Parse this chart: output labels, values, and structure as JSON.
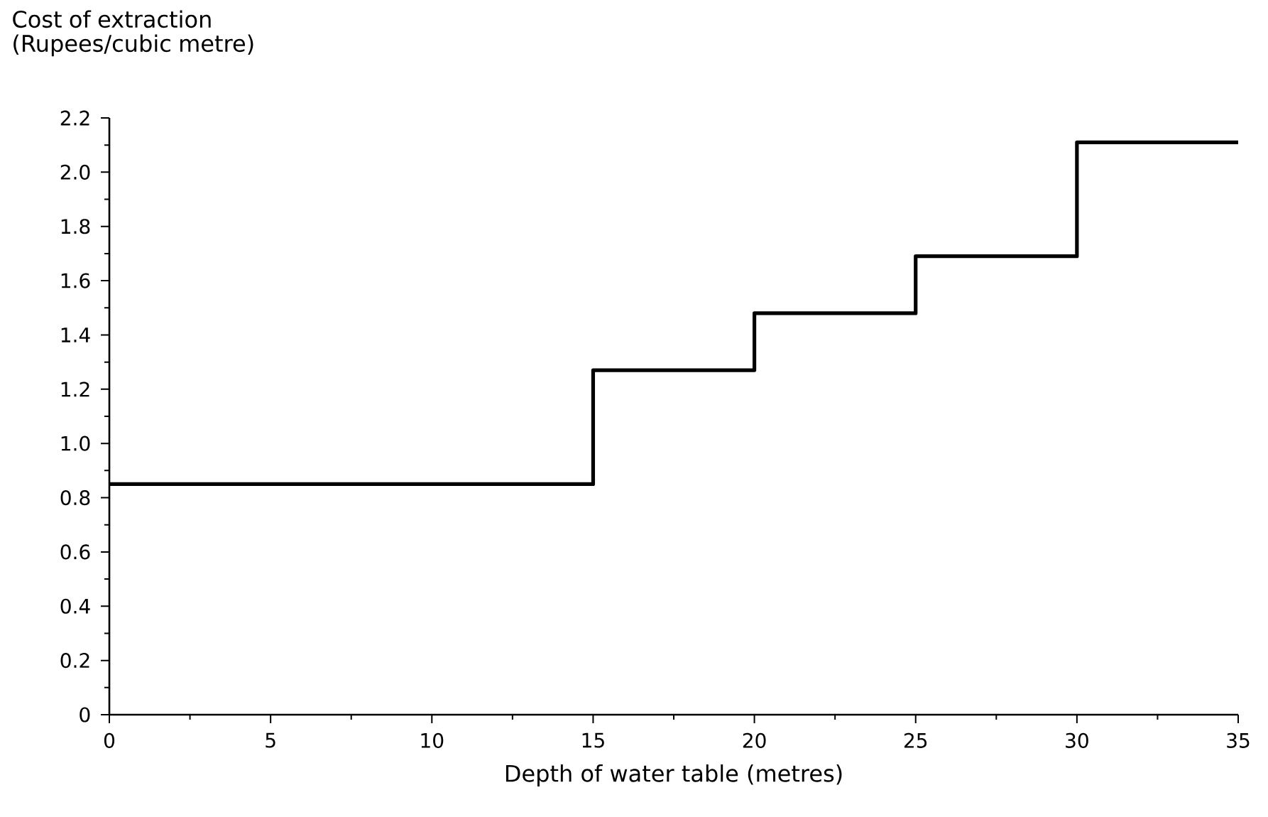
{
  "chart_data": {
    "type": "step",
    "ylabel": "Cost of extraction (Rupees/cubic metre)",
    "xlabel": "Depth of water table (metres)",
    "x": [
      0,
      15,
      20,
      25,
      30,
      35
    ],
    "series": [
      {
        "color": "#000000",
        "values": [
          0.85,
          1.27,
          1.48,
          1.69,
          2.11,
          2.11
        ]
      }
    ],
    "xlim": [
      0,
      35
    ],
    "xticks": [
      0,
      5,
      10,
      15,
      20,
      25,
      30,
      35
    ],
    "ylim": [
      0,
      2.2
    ],
    "yticks": [
      0,
      0.2,
      0.4,
      0.6,
      0.8,
      {
        "value": 1,
        "label": "1.0"
      },
      1.2,
      1.4,
      1.6,
      1.8,
      {
        "value": 2,
        "label": "2.0"
      },
      2.2
    ],
    "grid": false
  }
}
